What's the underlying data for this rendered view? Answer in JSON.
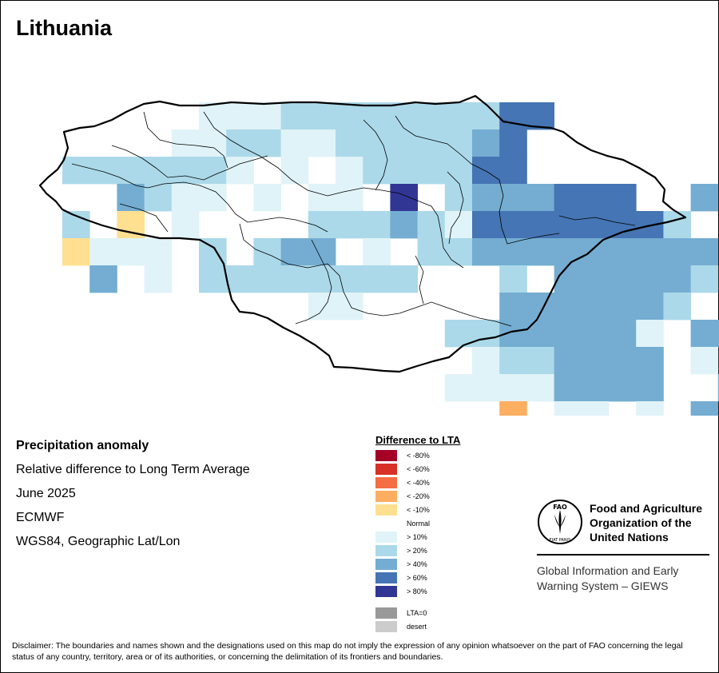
{
  "title": "Lithuania",
  "info": {
    "heading": "Precipitation anomaly",
    "subheading": "Relative difference to Long Term Average",
    "period": "June 2025",
    "source": "ECMWF",
    "projection": "WGS84, Geographic Lat/Lon"
  },
  "legend": {
    "title": "Difference to LTA",
    "items": [
      {
        "label": "< -80%",
        "color": "#a50026"
      },
      {
        "label": "< -60%",
        "color": "#d73027"
      },
      {
        "label": "< -40%",
        "color": "#f46d43"
      },
      {
        "label": "< -20%",
        "color": "#fdae61"
      },
      {
        "label": "< -10%",
        "color": "#fee090"
      },
      {
        "label": "Normal",
        "color": "#ffffff"
      },
      {
        "label": "> 10%",
        "color": "#e0f3f8"
      },
      {
        "label": "> 20%",
        "color": "#abd9e9"
      },
      {
        "label": "> 40%",
        "color": "#74add1"
      },
      {
        "label": "> 60%",
        "color": "#4575b4"
      },
      {
        "label": "> 80%",
        "color": "#313695"
      },
      {
        "label": "LTA=0",
        "color": "#999999"
      },
      {
        "label": "desert",
        "color": "#cccccc"
      }
    ]
  },
  "fao": {
    "name_line1": "Food and Agriculture",
    "name_line2": "Organization of the",
    "name_line3": "United Nations",
    "logo_text": "FAO",
    "logo_motto": "FIAT PANIS",
    "giews_line1": "Global Information and Early",
    "giews_line2": "Warning System – GIEWS"
  },
  "disclaimer": "Disclaimer: The boundaries and names shown and the designations used on this map do not imply the expression of any opinion whatsoever on the part of FAO concerning the legal status of any country, territory, area or of its authorities, or concerning the delimitation of its frontiers and boundaries.",
  "grid": {
    "rows": [
      "...1112222222244...",
      "..1122112222234...",
      "2222221.1.1222244",
      "..3211.1.11.6.2333444..3",
      "2.5.1....22232144444442",
      "5111.2.233.1.22333333333",
      ".3.1.22222222...2.333332",
      ".........11.....3333332",
      "........22333331.3333233",
      ".........1223333.1.2",
      "........11113333..3",
      "......7.11.1.3"
    ]
  }
}
